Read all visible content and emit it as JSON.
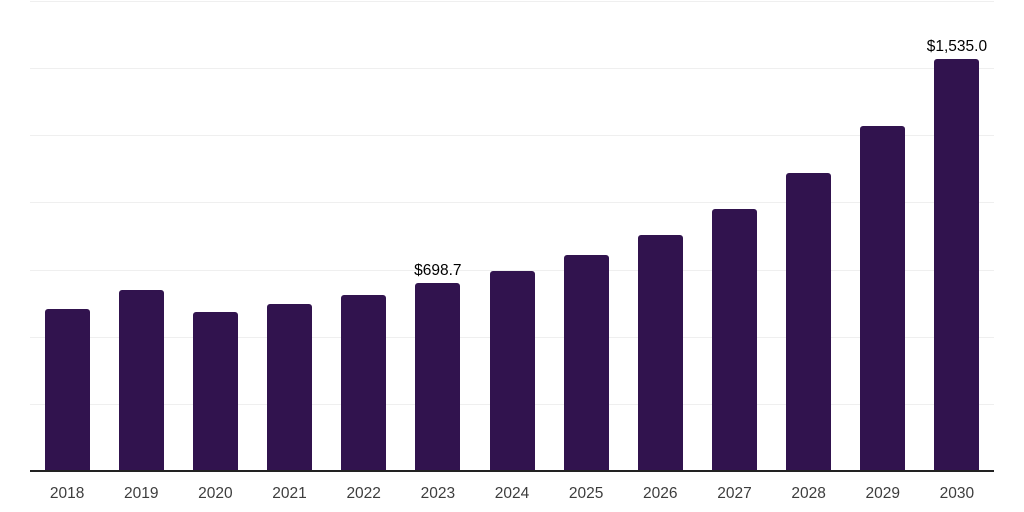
{
  "page": {
    "background_color": "#ffffff"
  },
  "chart_data": {
    "type": "bar",
    "title": "",
    "xlabel": "",
    "ylabel": "",
    "categories": [
      "2018",
      "2019",
      "2020",
      "2021",
      "2022",
      "2023",
      "2024",
      "2025",
      "2026",
      "2027",
      "2028",
      "2029",
      "2030"
    ],
    "values": [
      602,
      673,
      591,
      621,
      654,
      698.7,
      743,
      803,
      877,
      974,
      1108,
      1286,
      1535
    ],
    "data_labels": [
      "",
      "",
      "",
      "",
      "",
      "$698.7",
      "",
      "",
      "",
      "",
      "",
      "",
      "$1,535.0"
    ],
    "ylim": [
      0,
      1750
    ],
    "gridline_step": 250,
    "grid": "horizontal-only",
    "y_tick_labels_visible": false,
    "legend_position": "none",
    "bar_color": "#31134e",
    "grid_color": "#efefef",
    "axis_color": "#222222",
    "tick_label_color": "#3d3d3d",
    "data_label_color": "#000000"
  }
}
